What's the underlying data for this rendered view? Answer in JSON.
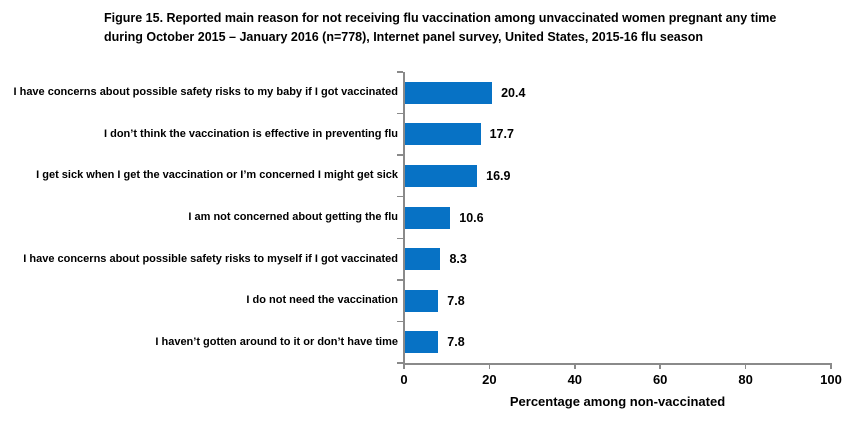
{
  "chart_data": {
    "type": "bar",
    "orientation": "horizontal",
    "title": "Figure 15. Reported main reason for not receiving flu vaccination among unvaccinated women pregnant any time during October 2015 – January 2016 (n=778), Internet panel survey, United States, 2015-16 flu season",
    "categories": [
      "I have concerns about possible safety risks to my baby if I got vaccinated",
      "I don’t think the vaccination is effective in preventing flu",
      "I get sick when I get the vaccination or I’m concerned I might get sick",
      "I am not concerned about getting the flu",
      "I have concerns about possible safety risks to myself if I got vaccinated",
      "I do not need the vaccination",
      "I haven’t gotten around to it or don’t have time"
    ],
    "values": [
      20.4,
      17.7,
      16.9,
      10.6,
      8.3,
      7.8,
      7.8
    ],
    "value_labels": [
      "20.4",
      "17.7",
      "16.9",
      "10.6",
      "8.3",
      "7.8",
      "7.8"
    ],
    "xlabel": "Percentage among non-vaccinated",
    "xlim": [
      0,
      100
    ],
    "xticks": [
      0,
      20,
      40,
      60,
      80,
      100
    ],
    "grid": false,
    "legend": false,
    "bar_color": "#0772C5",
    "axis_color": "#8a8a8a",
    "text_color": "#000000"
  }
}
